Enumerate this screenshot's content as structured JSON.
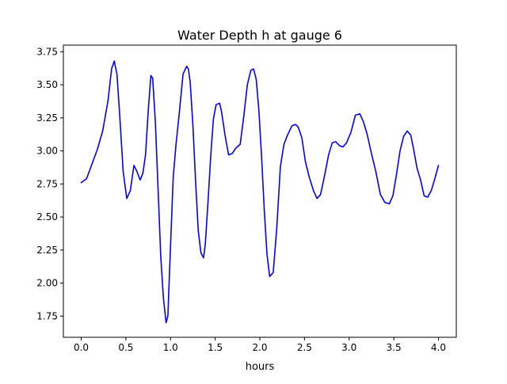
{
  "chart_data": {
    "type": "line",
    "title": "Water Depth h at gauge 6",
    "xlabel": "hours",
    "ylabel": "",
    "xlim": [
      -0.2,
      4.2
    ],
    "ylim": [
      1.59,
      3.8
    ],
    "xticks": [
      0.0,
      0.5,
      1.0,
      1.5,
      2.0,
      2.5,
      3.0,
      3.5,
      4.0
    ],
    "xtick_labels": [
      "0.0",
      "0.5",
      "1.0",
      "1.5",
      "2.0",
      "2.5",
      "3.0",
      "3.5",
      "4.0"
    ],
    "yticks": [
      1.75,
      2.0,
      2.25,
      2.5,
      2.75,
      3.0,
      3.25,
      3.5,
      3.75
    ],
    "ytick_labels": [
      "1.75",
      "2.00",
      "2.25",
      "2.50",
      "2.75",
      "3.00",
      "3.25",
      "3.50",
      "3.75"
    ],
    "grid": false,
    "series": [
      {
        "color": "#0000ff",
        "x": [
          0.0,
          0.06,
          0.12,
          0.18,
          0.24,
          0.3,
          0.34,
          0.37,
          0.4,
          0.43,
          0.47,
          0.51,
          0.55,
          0.59,
          0.62,
          0.66,
          0.69,
          0.72,
          0.75,
          0.78,
          0.8,
          0.83,
          0.86,
          0.89,
          0.92,
          0.95,
          0.97,
          1.0,
          1.03,
          1.06,
          1.1,
          1.14,
          1.18,
          1.2,
          1.22,
          1.25,
          1.28,
          1.31,
          1.34,
          1.37,
          1.39,
          1.42,
          1.45,
          1.48,
          1.51,
          1.55,
          1.57,
          1.61,
          1.65,
          1.69,
          1.73,
          1.78,
          1.82,
          1.86,
          1.9,
          1.93,
          1.96,
          1.99,
          2.02,
          2.05,
          2.08,
          2.11,
          2.15,
          2.19,
          2.23,
          2.27,
          2.31,
          2.36,
          2.4,
          2.43,
          2.47,
          2.51,
          2.55,
          2.6,
          2.64,
          2.68,
          2.73,
          2.77,
          2.81,
          2.85,
          2.89,
          2.93,
          2.97,
          3.02,
          3.07,
          3.12,
          3.16,
          3.2,
          3.25,
          3.3,
          3.35,
          3.4,
          3.45,
          3.49,
          3.53,
          3.57,
          3.61,
          3.65,
          3.69,
          3.72,
          3.76,
          3.8,
          3.84,
          3.88,
          3.92,
          3.96,
          4.0
        ],
        "y": [
          2.76,
          2.79,
          2.9,
          3.01,
          3.15,
          3.38,
          3.62,
          3.68,
          3.58,
          3.28,
          2.84,
          2.64,
          2.7,
          2.89,
          2.85,
          2.78,
          2.83,
          2.97,
          3.3,
          3.57,
          3.55,
          3.22,
          2.72,
          2.21,
          1.89,
          1.7,
          1.75,
          2.28,
          2.8,
          3.04,
          3.3,
          3.58,
          3.64,
          3.62,
          3.52,
          3.2,
          2.78,
          2.4,
          2.23,
          2.19,
          2.3,
          2.62,
          2.96,
          3.24,
          3.35,
          3.36,
          3.3,
          3.12,
          2.97,
          2.98,
          3.02,
          3.05,
          3.26,
          3.5,
          3.61,
          3.62,
          3.54,
          3.3,
          2.95,
          2.55,
          2.22,
          2.05,
          2.08,
          2.42,
          2.88,
          3.05,
          3.12,
          3.19,
          3.2,
          3.18,
          3.1,
          2.92,
          2.81,
          2.7,
          2.64,
          2.67,
          2.83,
          2.97,
          3.06,
          3.07,
          3.04,
          3.03,
          3.06,
          3.14,
          3.27,
          3.28,
          3.22,
          3.13,
          2.98,
          2.84,
          2.67,
          2.61,
          2.6,
          2.66,
          2.82,
          3.0,
          3.11,
          3.15,
          3.12,
          3.02,
          2.87,
          2.78,
          2.66,
          2.65,
          2.7,
          2.79,
          2.89
        ]
      }
    ]
  }
}
